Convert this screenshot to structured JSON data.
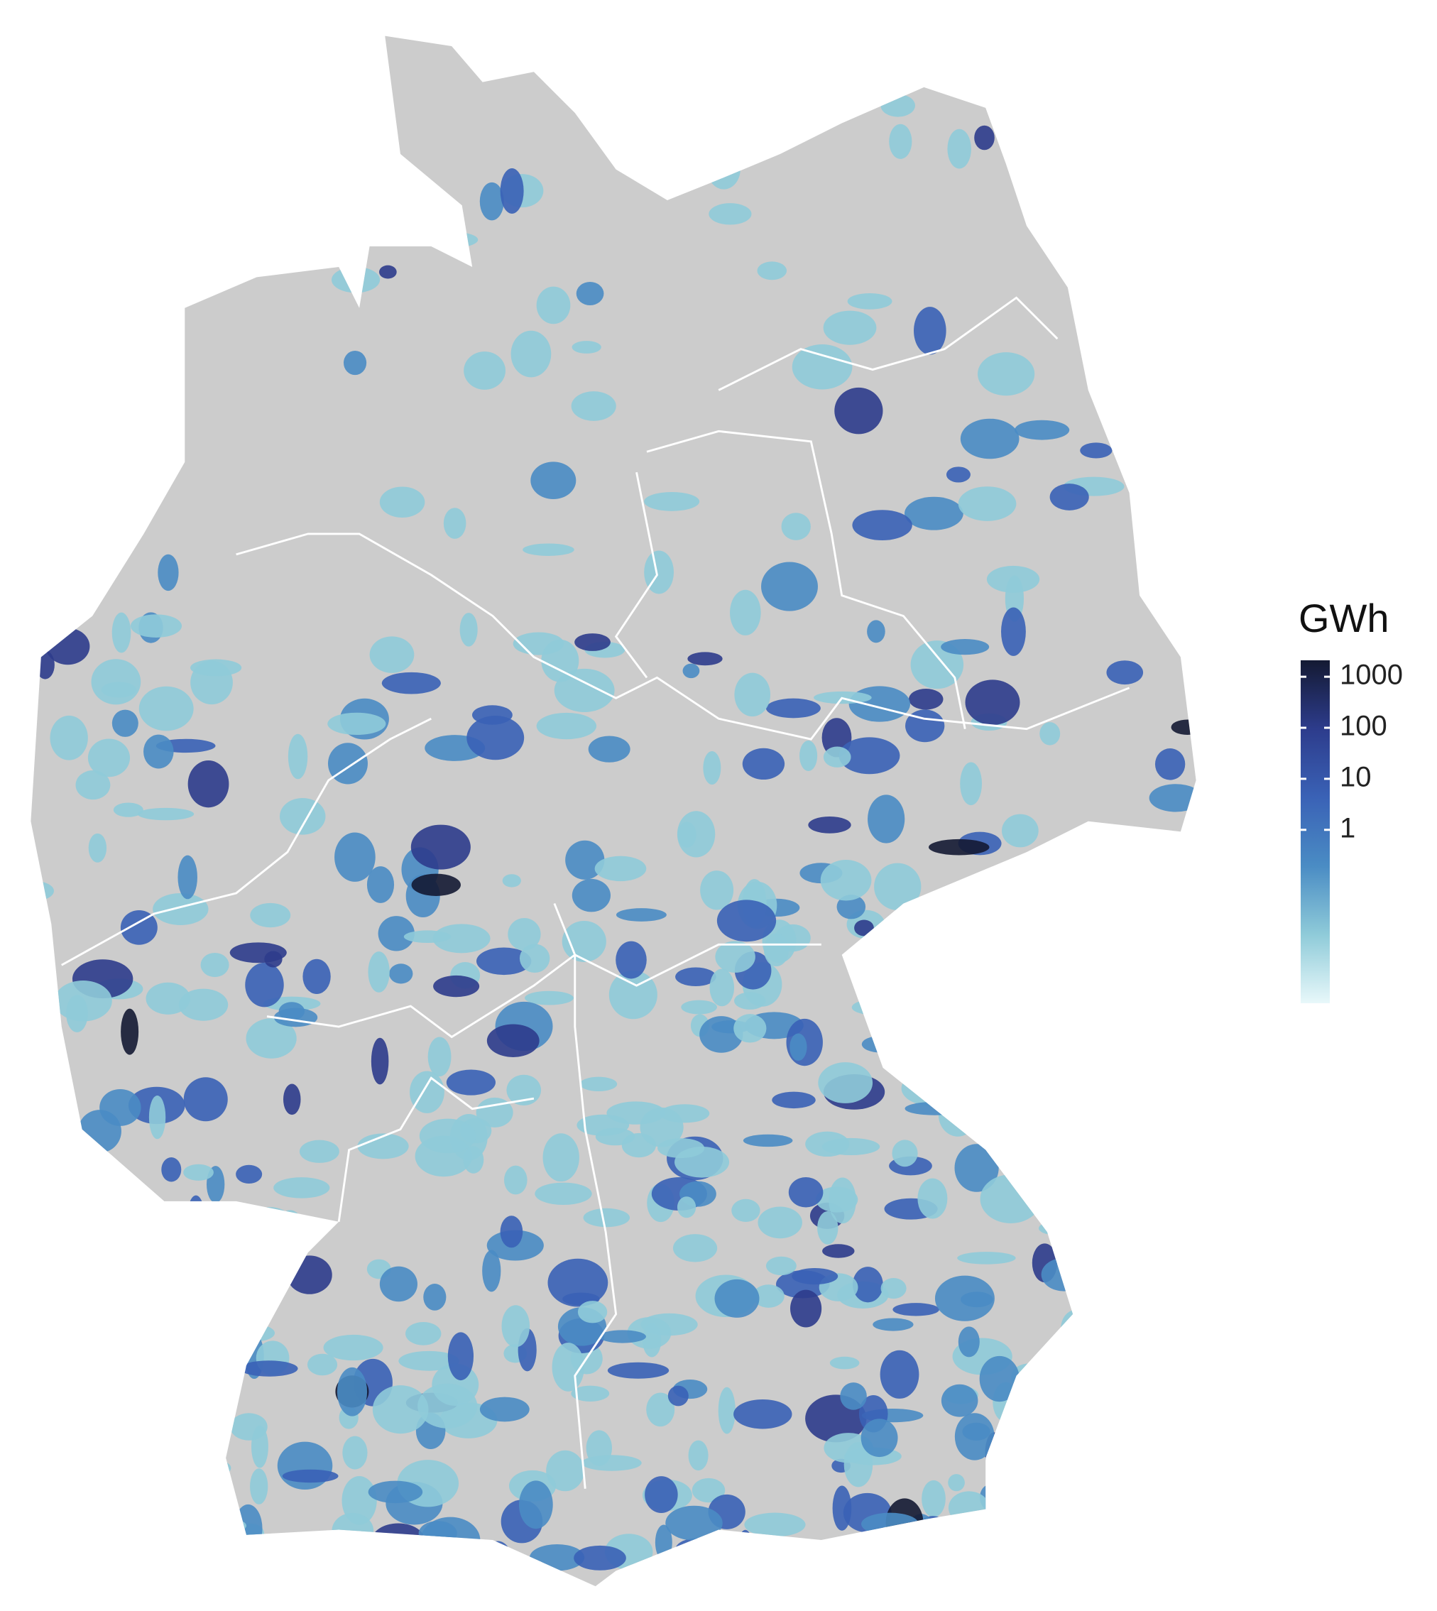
{
  "legend": {
    "title": "GWh",
    "scale": "log",
    "lim": [
      0.0004,
      2100
    ],
    "ticks": [
      1,
      10,
      100,
      1000
    ],
    "colors": [
      "#e8f8fa",
      "#8fcbd9",
      "#4a8cc4",
      "#3a62b6",
      "#2d3c8c",
      "#141a33"
    ]
  }
}
